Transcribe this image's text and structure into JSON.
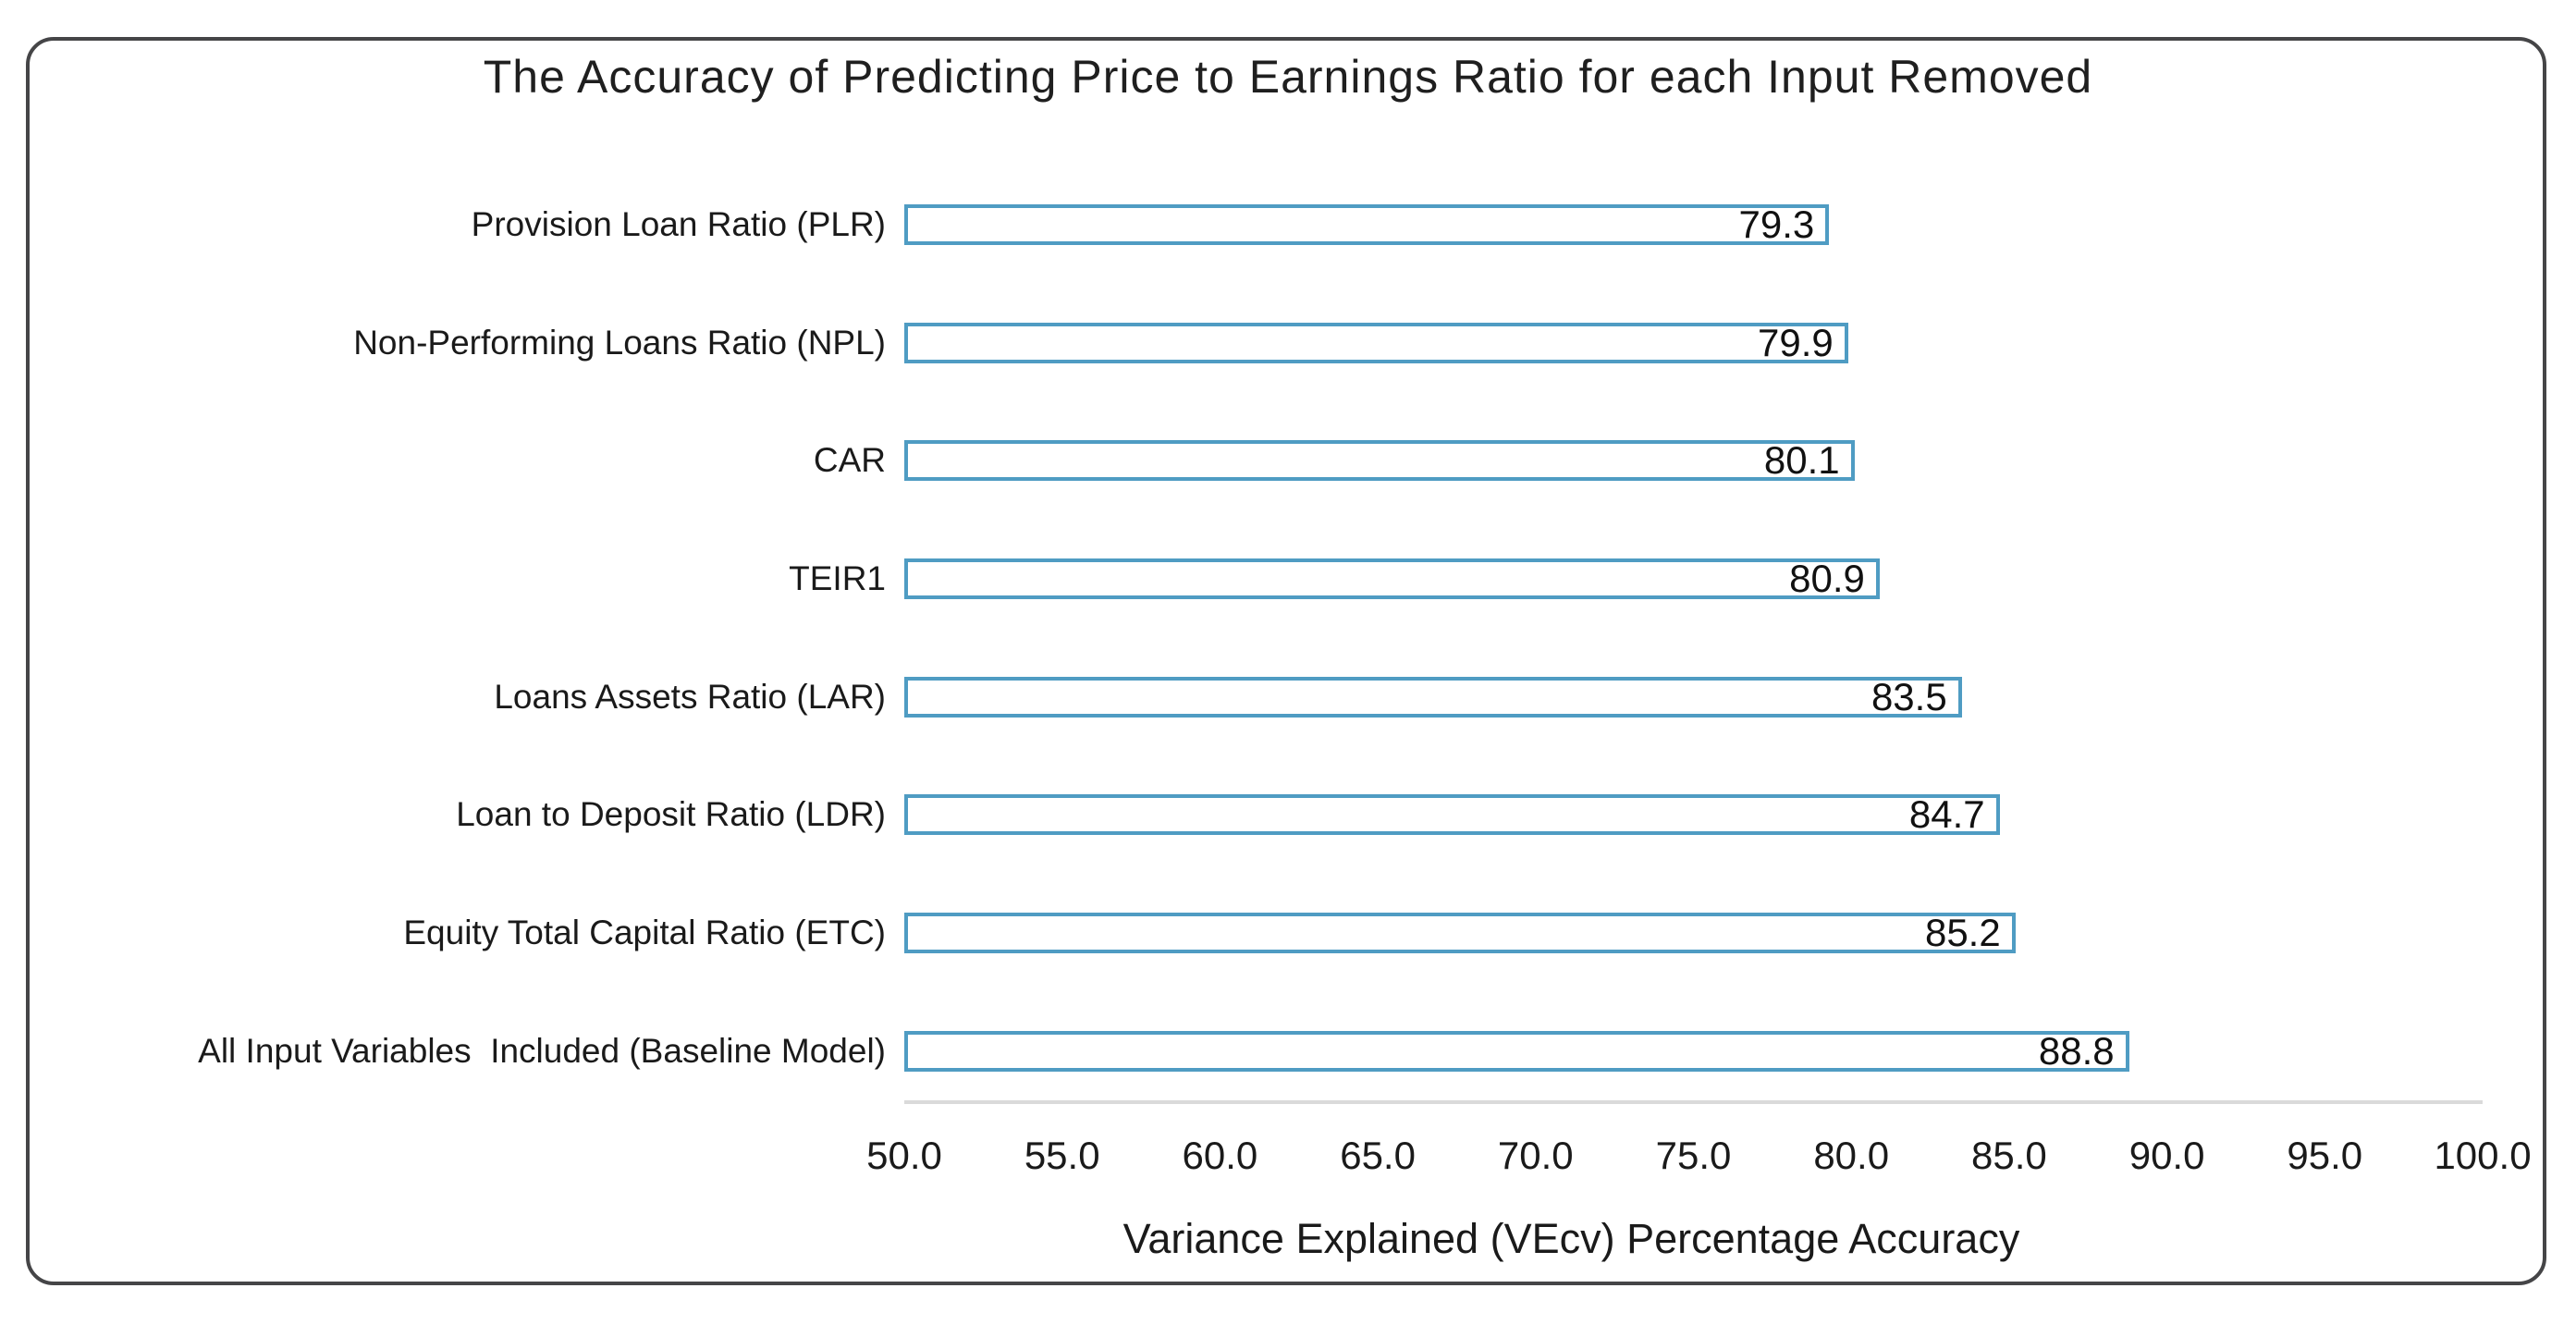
{
  "chart_data": {
    "type": "bar",
    "orientation": "horizontal",
    "title": "The Accuracy of Predicting Price to Earnings Ratio for each Input Removed",
    "categories": [
      "Provision Loan Ratio (PLR)",
      "Non-Performing Loans Ratio (NPL)",
      "CAR",
      "TEIR1",
      "Loans Assets Ratio (LAR)",
      "Loan to Deposit Ratio (LDR)",
      "Equity Total Capital Ratio (ETC)",
      "All Input Variables  Included (Baseline Model)"
    ],
    "values": [
      79.3,
      79.9,
      80.1,
      80.9,
      83.5,
      84.7,
      85.2,
      88.8
    ],
    "value_labels": [
      "79.3",
      "79.9",
      "80.1",
      "80.9",
      "83.5",
      "84.7",
      "85.2",
      "88.8"
    ],
    "xlabel": "Variance Explained (VEcv) Percentage Accuracy",
    "xlim": [
      50.0,
      100.0
    ],
    "xticks": [
      "50.0",
      "55.0",
      "60.0",
      "65.0",
      "70.0",
      "75.0",
      "80.0",
      "85.0",
      "90.0",
      "95.0",
      "100.0"
    ],
    "grid": false,
    "legend": null,
    "bar_style": {
      "fill": "#ffffff",
      "border": "#4f9cc3",
      "value_label_position": "inside-right"
    },
    "colors": {
      "axis_line": "#dadada",
      "text": "#1a1a1a",
      "frame_border": "#454547"
    }
  }
}
